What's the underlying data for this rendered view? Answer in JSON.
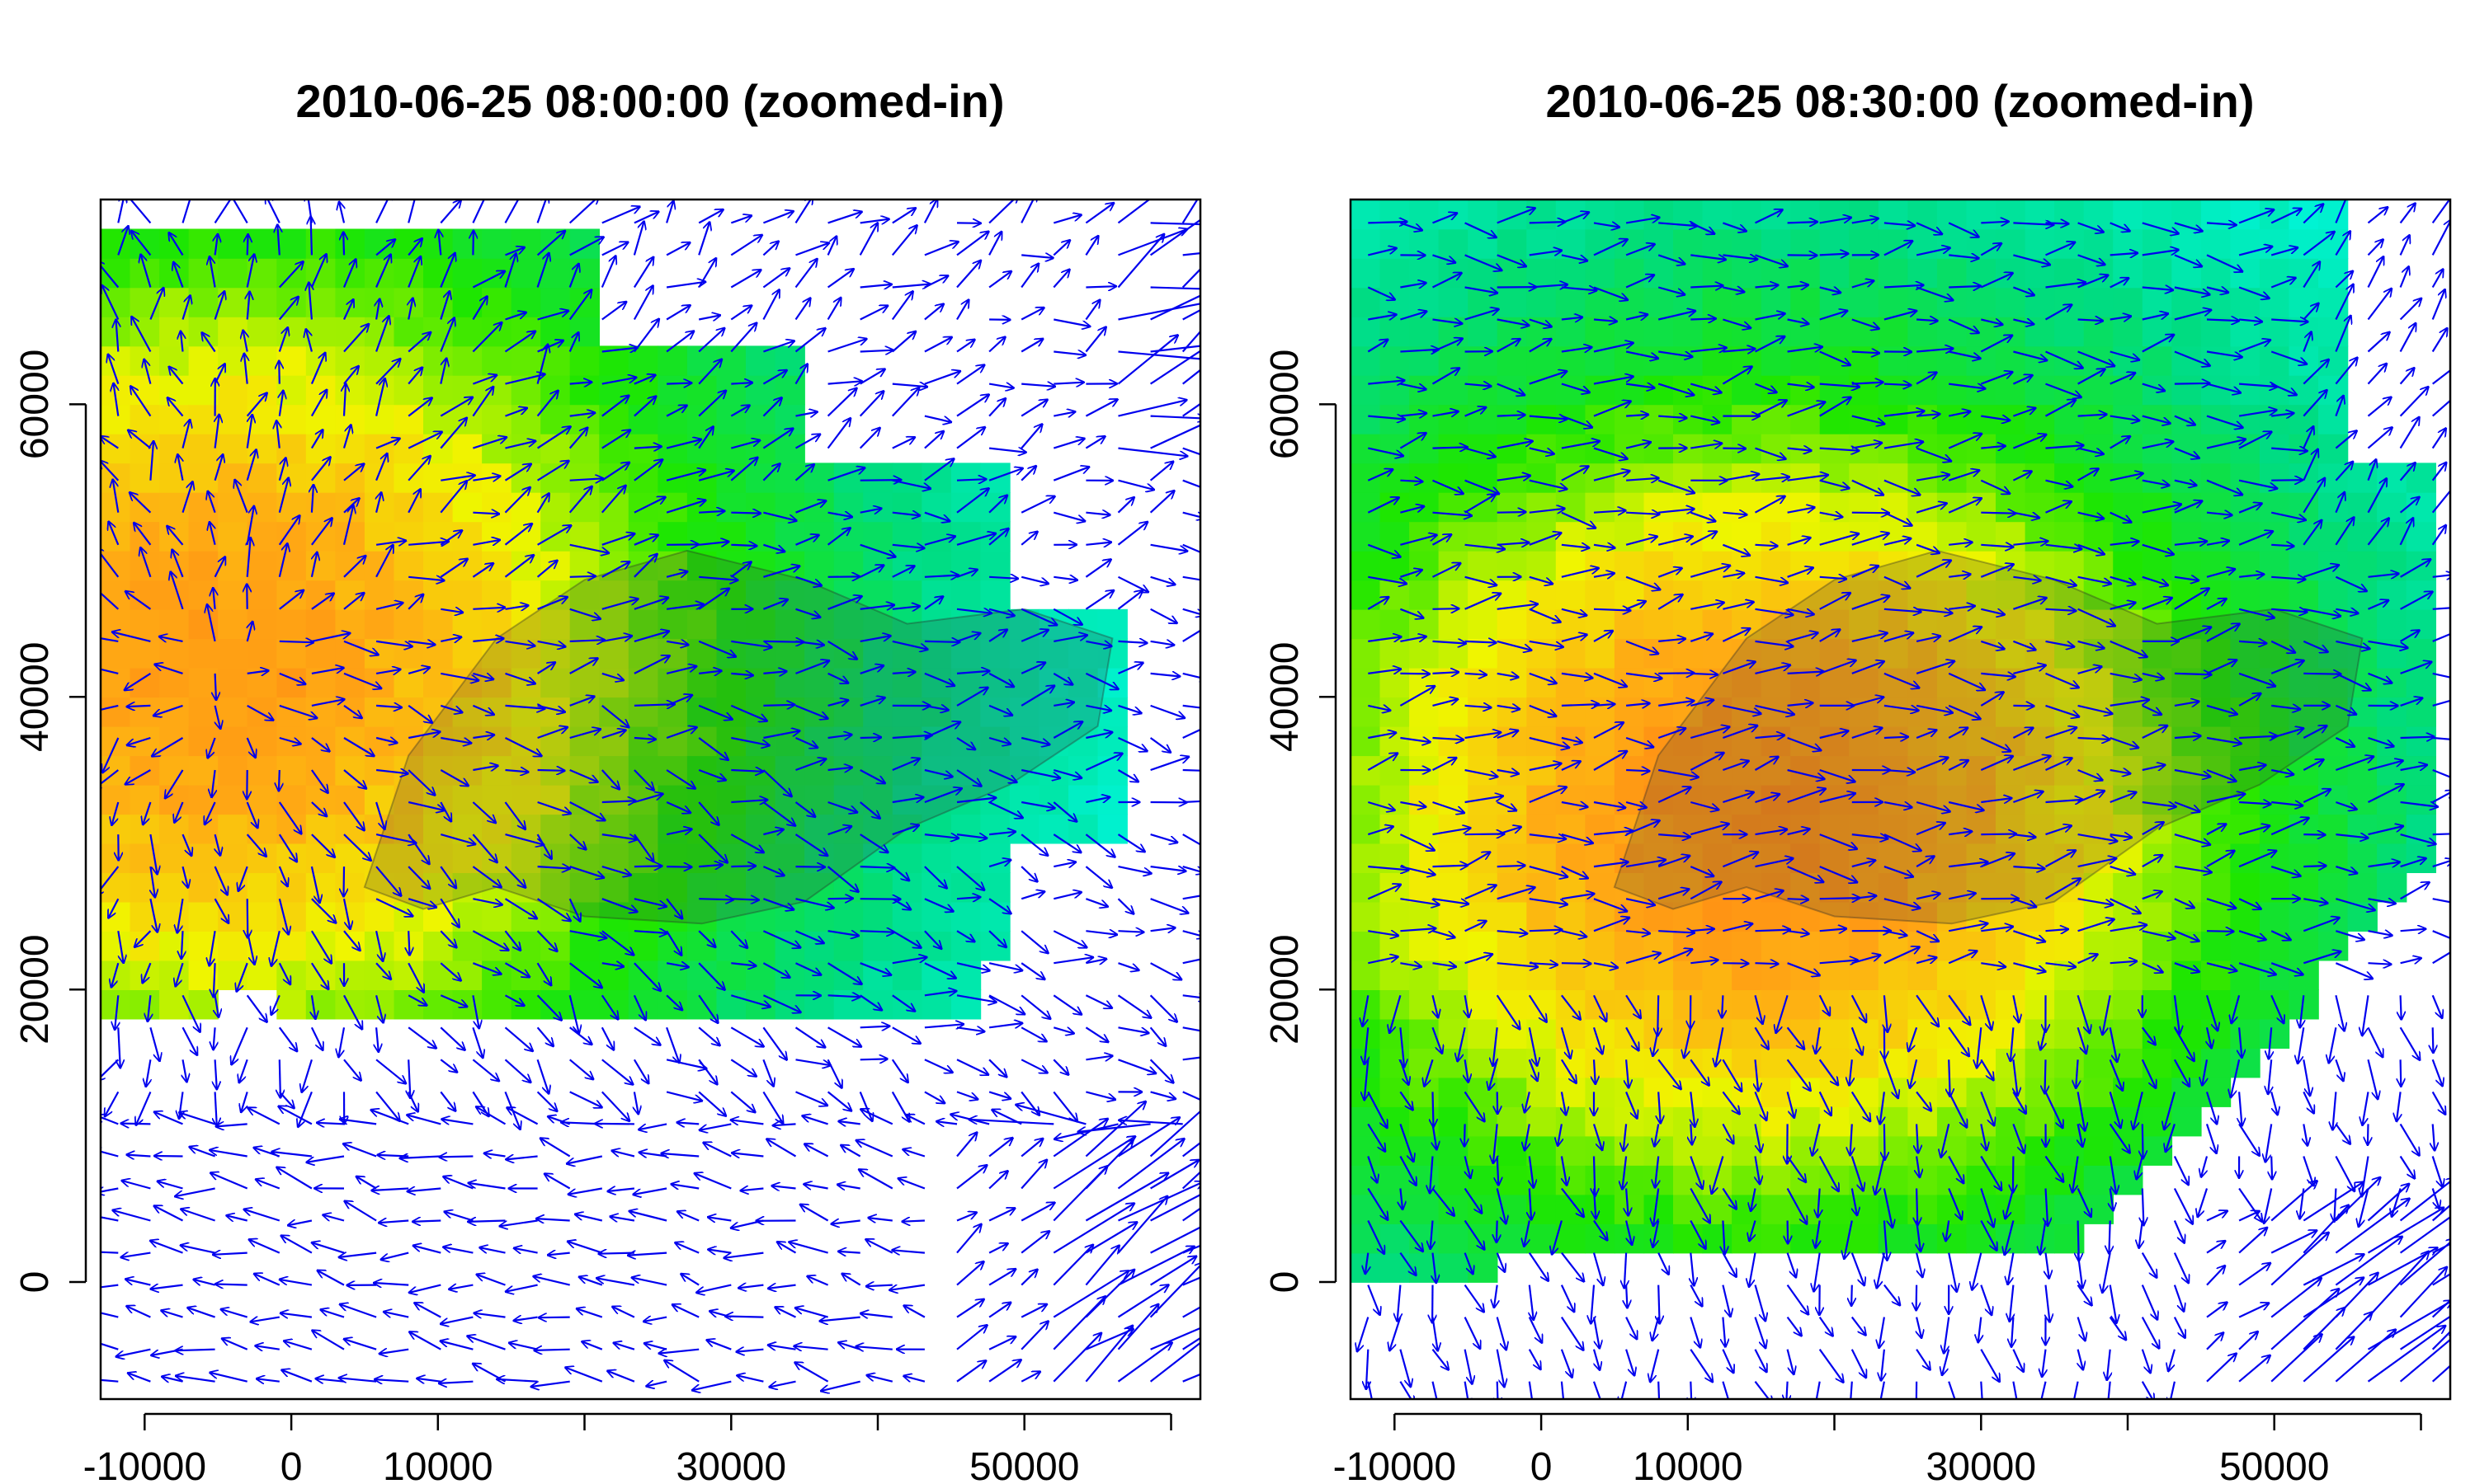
{
  "chart_data": [
    {
      "type": "heatmap",
      "title": "2010-06-25 08:00:00 (zoomed-in)",
      "xlabel": "",
      "ylabel": "",
      "xlim": [
        -13000,
        62000
      ],
      "ylim": [
        -8000,
        74000
      ],
      "x_ticks": [
        -10000,
        0,
        10000,
        30000,
        50000
      ],
      "x_tick_labels": [
        "-10000",
        "0",
        "10000",
        "30000",
        "50000"
      ],
      "x_minor_ticks": [
        -10000,
        0,
        10000,
        20000,
        30000,
        40000,
        50000,
        60000
      ],
      "y_ticks": [
        0,
        20000,
        40000,
        60000
      ],
      "y_tick_labels": [
        "0",
        "20000",
        "40000",
        "60000"
      ],
      "layers": [
        "gridded intensity field (rainbow colour scale)",
        "island outline overlay",
        "blue wind vector arrows"
      ],
      "hotspot": {
        "x": -5000,
        "y": 42000,
        "peak": 0.88,
        "spread": 32000
      },
      "field_extent_notes": "coloured cells mostly x < 50000 and y 17000-72000",
      "colors": {
        "arrows": "#0000ee",
        "low": "#00ffff",
        "mid": "#00ee00",
        "high": "#ffff00",
        "peak": "#ff8c00"
      }
    },
    {
      "type": "heatmap",
      "title": "2010-06-25 08:30:00 (zoomed-in)",
      "xlabel": "",
      "ylabel": "",
      "xlim": [
        -13000,
        62000
      ],
      "ylim": [
        -8000,
        74000
      ],
      "x_ticks": [
        -10000,
        0,
        10000,
        30000,
        50000
      ],
      "x_tick_labels": [
        "-10000",
        "0",
        "10000",
        "30000",
        "50000"
      ],
      "x_minor_ticks": [
        -10000,
        0,
        10000,
        20000,
        30000,
        40000,
        50000,
        60000
      ],
      "y_ticks": [
        0,
        20000,
        40000,
        60000
      ],
      "y_tick_labels": [
        "0",
        "20000",
        "40000",
        "60000"
      ],
      "layers": [
        "gridded intensity field (rainbow colour scale)",
        "island outline overlay",
        "blue wind vector arrows"
      ],
      "hotspot": {
        "x": 15000,
        "y": 32000,
        "peak": 0.92,
        "spread": 30000
      },
      "field_extent_notes": "coloured cells cover most of x -13000-60000 and y 0-74000",
      "colors": {
        "arrows": "#0000ee",
        "low": "#00ffff",
        "mid": "#00ee00",
        "high": "#ffff00",
        "peak": "#ff8c00"
      }
    }
  ]
}
